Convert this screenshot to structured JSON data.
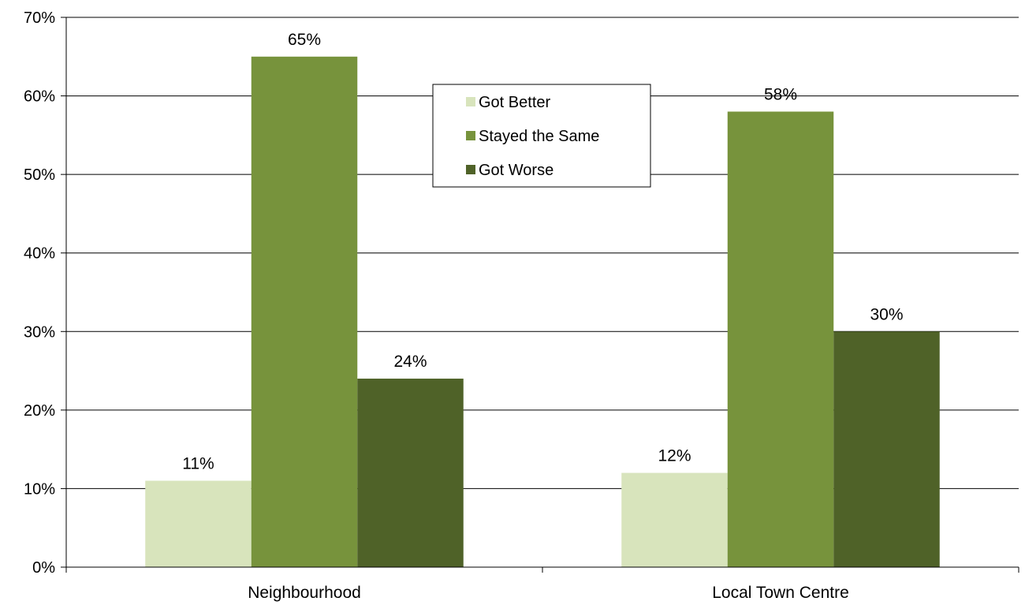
{
  "chart_data": {
    "type": "bar",
    "title": "",
    "xlabel": "",
    "ylabel": "",
    "categories": [
      "Neighbourhood",
      "Local Town Centre"
    ],
    "series": [
      {
        "name": "Got Better",
        "values": [
          11,
          12
        ],
        "labels": [
          "11%",
          "12%"
        ],
        "color": "#d8e4bc"
      },
      {
        "name": "Stayed the Same",
        "values": [
          65,
          58
        ],
        "labels": [
          "65%",
          "58%"
        ],
        "color": "#77933c"
      },
      {
        "name": "Got Worse",
        "values": [
          24,
          30
        ],
        "labels": [
          "24%",
          "30%"
        ],
        "color": "#4f6228"
      }
    ],
    "ylim": [
      0,
      70
    ],
    "yticks": [
      0,
      10,
      20,
      30,
      40,
      50,
      60,
      70
    ],
    "ytick_labels": [
      "0%",
      "10%",
      "20%",
      "30%",
      "40%",
      "50%",
      "60%",
      "70%"
    ],
    "grid": true,
    "legend_position": "top-center"
  }
}
